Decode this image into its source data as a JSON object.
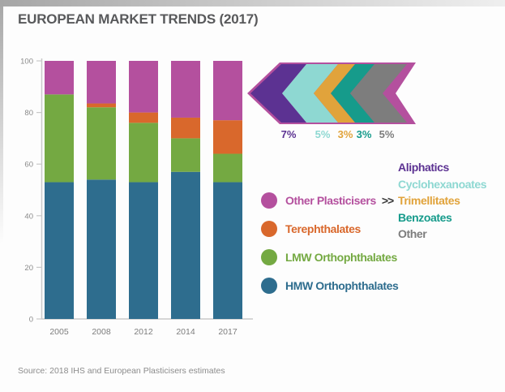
{
  "title": "EUROPEAN MARKET TRENDS (2017)",
  "source": "Source: 2018 IHS and European Plasticisers estimates",
  "chart_data": {
    "type": "bar",
    "stacked": true,
    "title": "EUROPEAN MARKET TRENDS (2017)",
    "xlabel": "",
    "ylabel": "",
    "categories": [
      "2005",
      "2008",
      "2012",
      "2014",
      "2017"
    ],
    "series": [
      {
        "name": "HMW Orthophthalates",
        "color": "#2e6d8e",
        "values": [
          53,
          54,
          53,
          57,
          53
        ]
      },
      {
        "name": "LMW Orthophthalates",
        "color": "#74a942",
        "values": [
          34,
          28,
          23,
          13,
          11
        ]
      },
      {
        "name": "Terephthalates",
        "color": "#d9682c",
        "values": [
          0,
          1.5,
          4,
          8,
          13
        ]
      },
      {
        "name": "Other Plasticisers",
        "color": "#b4509e",
        "values": [
          13,
          16.5,
          20,
          22,
          23
        ]
      }
    ],
    "ylim": [
      0,
      100
    ],
    "yticks": [
      0,
      20,
      40,
      60,
      80,
      100
    ],
    "grid": false,
    "legend_position": "right"
  },
  "arrow": {
    "outline_color": "#b4509e",
    "segments": [
      {
        "label": "Aliphatics",
        "pct": "7%",
        "color": "#5c3292"
      },
      {
        "label": "Cyclohexanoates",
        "pct": "5%",
        "color": "#8ed8d2"
      },
      {
        "label": "Trimellitates",
        "pct": "3%",
        "color": "#e1a33b"
      },
      {
        "label": "Benzoates",
        "pct": "3%",
        "color": "#169b8b"
      },
      {
        "label": "Other",
        "pct": "5%",
        "color": "#7d7d7d"
      }
    ]
  },
  "legend": {
    "items": [
      {
        "label": "Other Plasticisers",
        "color": "#b4509e",
        "suffix": ">>"
      },
      {
        "label": "Terephthalates",
        "color": "#d9682c"
      },
      {
        "label": "LMW Orthophthalates",
        "color": "#74a942"
      },
      {
        "label": "HMW Orthophthalates",
        "color": "#2e6d8e"
      }
    ]
  },
  "colors": {
    "title_text": "#58595b",
    "axis_line": "#c9c9c9",
    "axis_tick_text": "#8a8a8a",
    "category_text": "#7d7d7d",
    "source_text": "#8c8c8c",
    "legend_suffix_text": "#3a3a3a"
  }
}
